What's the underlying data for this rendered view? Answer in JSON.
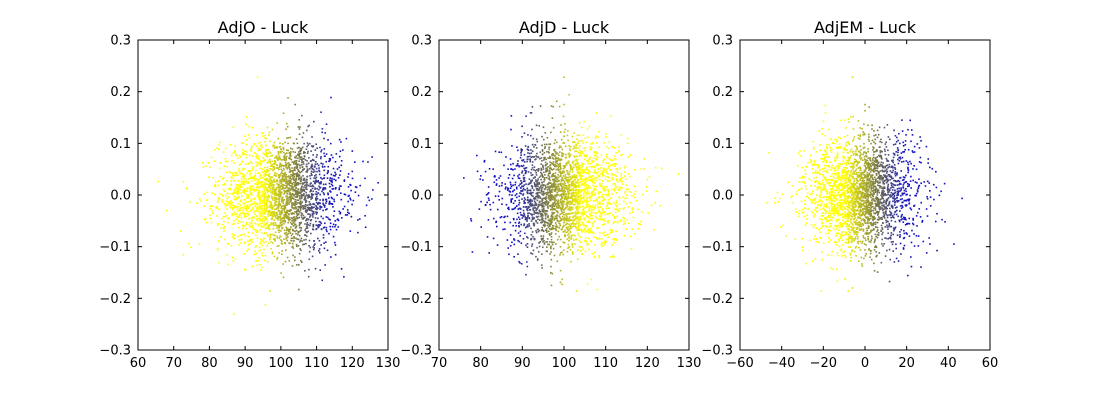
{
  "figure": {
    "background": "#ffffff"
  },
  "chart_data": [
    {
      "type": "scatter",
      "title": "AdjO - Luck",
      "xlabel": "",
      "ylabel": "",
      "xlim": [
        60,
        130
      ],
      "ylim": [
        -0.3,
        0.3
      ],
      "xticks": [
        60,
        70,
        80,
        90,
        100,
        110,
        120,
        130
      ],
      "yticks": [
        -0.3,
        -0.2,
        -0.1,
        0.0,
        0.1,
        0.2,
        0.3
      ],
      "xtick_labels": [
        "60",
        "70",
        "80",
        "90",
        "100",
        "110",
        "120",
        "130"
      ],
      "ytick_labels": [
        "−0.3",
        "−0.2",
        "−0.1",
        "0.0",
        "0.1",
        "0.2",
        "0.3"
      ],
      "grid": false,
      "colors": {
        "low": "#ffff00",
        "mid": "#808040",
        "high": "#1010c0"
      },
      "distribution": {
        "x_mean": 100,
        "x_sd": 8.5,
        "y_mean": 0.0,
        "y_sd": 0.055,
        "n": 2600,
        "gradient_axis": "x"
      },
      "series": [
        {
          "values": [
            [
              93.5,
              0.228
            ],
            [
              68,
              -0.03
            ],
            [
              72,
              -0.07
            ],
            [
              124,
              -0.02
            ],
            [
              123,
              0.065
            ],
            [
              104,
              0.175
            ],
            [
              102,
              0.188
            ],
            [
              97,
              -0.186
            ],
            [
              105,
              -0.183
            ],
            [
              117,
              -0.143
            ],
            [
              114,
              -0.12
            ],
            [
              120,
              0.085
            ]
          ]
        }
      ]
    },
    {
      "type": "scatter",
      "title": "AdjD - Luck",
      "xlabel": "",
      "ylabel": "",
      "xlim": [
        70,
        130
      ],
      "ylim": [
        -0.3,
        0.3
      ],
      "xticks": [
        70,
        80,
        90,
        100,
        110,
        120,
        130
      ],
      "yticks": [
        -0.3,
        -0.2,
        -0.1,
        0.0,
        0.1,
        0.2,
        0.3
      ],
      "xtick_labels": [
        "70",
        "80",
        "90",
        "100",
        "110",
        "120",
        "130"
      ],
      "ytick_labels": [
        "−0.3",
        "−0.2",
        "−0.1",
        "0.0",
        "0.1",
        "0.2",
        "0.3"
      ],
      "grid": false,
      "colors": {
        "low": "#ffff00",
        "mid": "#808040",
        "high": "#1010c0"
      },
      "distribution": {
        "x_mean": 100,
        "x_sd": 7.5,
        "y_mean": 0.0,
        "y_sd": 0.055,
        "n": 2600,
        "gradient_axis": "-x"
      },
      "series": [
        {
          "values": [
            [
              100,
              0.228
            ],
            [
              82,
              -0.01
            ],
            [
              83,
              0.05
            ],
            [
              121,
              -0.02
            ],
            [
              120,
              0.03
            ],
            [
              97,
              0.172
            ],
            [
              100,
              0.175
            ],
            [
              97,
              -0.175
            ],
            [
              103,
              -0.186
            ],
            [
              108,
              -0.183
            ],
            [
              112,
              -0.12
            ]
          ]
        }
      ]
    },
    {
      "type": "scatter",
      "title": "AdjEM - Luck",
      "xlabel": "",
      "ylabel": "",
      "xlim": [
        -60,
        60
      ],
      "ylim": [
        -0.3,
        0.3
      ],
      "xticks": [
        -60,
        -40,
        -20,
        0,
        20,
        40,
        60
      ],
      "yticks": [
        -0.3,
        -0.2,
        -0.1,
        0.0,
        0.1,
        0.2,
        0.3
      ],
      "xtick_labels": [
        "−60",
        "−40",
        "−20",
        "0",
        "20",
        "40",
        "60"
      ],
      "ytick_labels": [
        "−0.3",
        "−0.2",
        "−0.1",
        "0.0",
        "0.1",
        "0.2",
        "0.3"
      ],
      "grid": false,
      "colors": {
        "low": "#ffff00",
        "mid": "#808040",
        "high": "#1010c0"
      },
      "distribution": {
        "x_mean": -2,
        "x_sd": 13,
        "y_mean": 0.0,
        "y_sd": 0.055,
        "n": 2600,
        "gradient_axis": "x"
      },
      "series": [
        {
          "values": [
            [
              -6,
              0.228
            ],
            [
              -47,
              -0.015
            ],
            [
              -42,
              0.005
            ],
            [
              -38,
              -0.08
            ],
            [
              34,
              0.045
            ],
            [
              33,
              0.02
            ],
            [
              0,
              0.175
            ],
            [
              2,
              0.17
            ],
            [
              -8,
              -0.186
            ],
            [
              -6,
              -0.18
            ],
            [
              22,
              -0.12
            ],
            [
              28,
              -0.09
            ]
          ]
        }
      ]
    }
  ]
}
